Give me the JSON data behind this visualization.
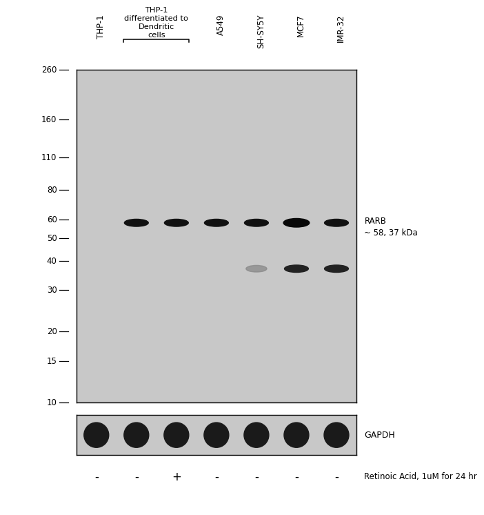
{
  "bg_color": "#c8c8c8",
  "panel_bg": "#c8c8c8",
  "white_bg": "#ffffff",
  "border_color": "#000000",
  "mw_markers": [
    260,
    160,
    110,
    80,
    60,
    50,
    40,
    30,
    20,
    15,
    10
  ],
  "retinoic_signs": [
    "-",
    "-",
    "+",
    "-",
    "-",
    "-",
    "-"
  ],
  "retinoic_label": "Retinoic Acid, 1uM for 24 hr",
  "rarb_label": "RARB\n~ 58, 37 kDa",
  "gapdh_label": "GAPDH",
  "num_lanes": 7,
  "figure_width": 6.5,
  "figure_height": 7.3,
  "lane_x": [
    0.5,
    1.5,
    2.5,
    3.5,
    4.5,
    5.5,
    6.5
  ],
  "mw_log_min": 1.0,
  "mw_log_max": 2.4149733,
  "band_58_lanes": [
    1,
    2,
    3,
    4,
    5,
    6
  ],
  "band_37_lanes": [
    4,
    5,
    6
  ],
  "band_37_faint_lanes": [
    4
  ],
  "gapdh_lanes": [
    0,
    1,
    2,
    3,
    4,
    5,
    6
  ]
}
